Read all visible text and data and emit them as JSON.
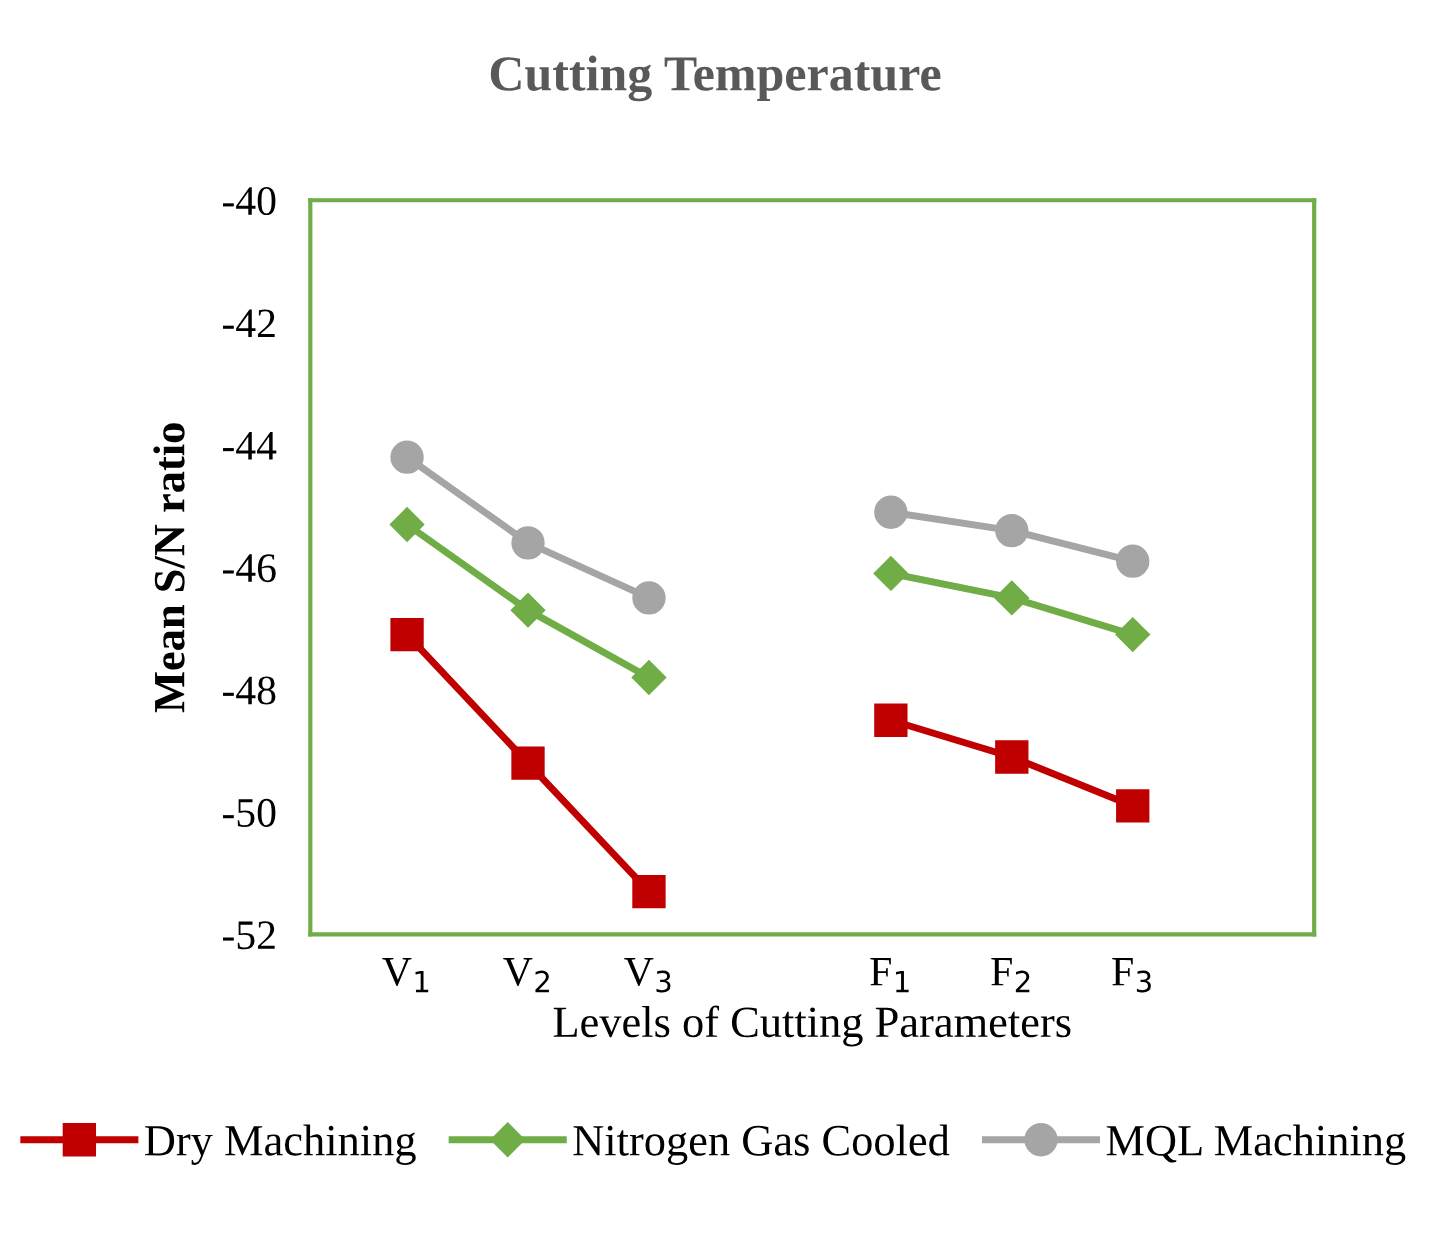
{
  "chart_data": {
    "type": "line",
    "title": "Cutting Temperature",
    "xlabel": "Levels of Cutting Parameters",
    "ylabel": "Mean S/N ratio",
    "categories": [
      "V$_{1}$",
      "V$_{2}$",
      "V$_{3}$",
      null,
      "F$_{1}$",
      "F$_{2}$",
      "F$_{3}$"
    ],
    "series": [
      {
        "name": "Dry Machining",
        "color": "#c00000",
        "marker": "square",
        "values": [
          -47.1,
          -49.2,
          -51.3,
          null,
          -48.5,
          -49.1,
          -49.9
        ]
      },
      {
        "name": "Nitrogen Gas Cooled",
        "color": "#70ad47",
        "marker": "diamond",
        "values": [
          -45.3,
          -46.7,
          -47.8,
          null,
          -46.1,
          -46.5,
          -47.1
        ]
      },
      {
        "name": "MQL Machining",
        "color": "#a5a5a5",
        "marker": "circle",
        "values": [
          -44.2,
          -45.6,
          -46.5,
          null,
          -45.1,
          -45.4,
          -45.9
        ]
      }
    ],
    "ylim": [
      -52,
      -40
    ],
    "yticks": [
      -52,
      -50,
      -48,
      -46,
      -44,
      -42,
      -40
    ],
    "grid": false,
    "legend": "bottom",
    "line_style": "solid"
  }
}
